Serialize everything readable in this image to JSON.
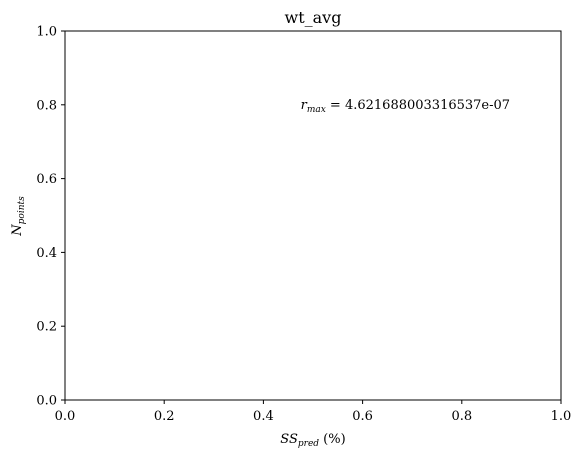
{
  "chart_data": {
    "type": "scatter",
    "title": "wt_avg",
    "xlabel": {
      "main": "SS",
      "sub": "pred",
      "suffix": " (%)"
    },
    "ylabel": {
      "main": "N",
      "sub": "points"
    },
    "xlim": [
      0.0,
      1.0
    ],
    "ylim": [
      0.0,
      1.0
    ],
    "xticks": [
      "0.0",
      "0.2",
      "0.4",
      "0.6",
      "0.8",
      "1.0"
    ],
    "yticks": [
      "0.0",
      "0.2",
      "0.4",
      "0.6",
      "0.8",
      "1.0"
    ],
    "grid": false,
    "series": [],
    "annotation": {
      "main": "r",
      "sub": "max",
      "text": " = 4.621688003316537e-07",
      "x": 0.475,
      "y": 0.8
    }
  }
}
